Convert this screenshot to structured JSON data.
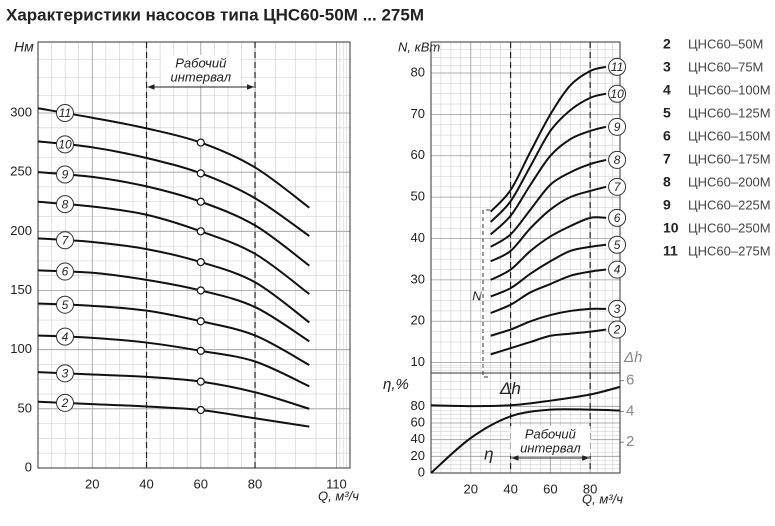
{
  "title": "Характеристики насосов типа ЦНС60-50М ... 275М",
  "legend": [
    {
      "number": "2",
      "name": "ЦНС60–50М"
    },
    {
      "number": "3",
      "name": "ЦНС60–75М"
    },
    {
      "number": "4",
      "name": "ЦНС60–100М"
    },
    {
      "number": "5",
      "name": "ЦНС60–125М"
    },
    {
      "number": "6",
      "name": "ЦНС60–150М"
    },
    {
      "number": "7",
      "name": "ЦНС60–175М"
    },
    {
      "number": "8",
      "name": "ЦНС60–200М"
    },
    {
      "number": "9",
      "name": "ЦНС60–225М"
    },
    {
      "number": "10",
      "name": "ЦНС60–250М"
    },
    {
      "number": "11",
      "name": "ЦНС60–275М"
    }
  ],
  "chart_data": [
    {
      "type": "line",
      "x_label": "Q, м³/ч",
      "y_label": "Hм",
      "annotation": [
        "Рабочий",
        "интервал"
      ],
      "work_interval": [
        40,
        80
      ],
      "marker_x": 60,
      "x": [
        0,
        20,
        40,
        60,
        80,
        100
      ],
      "xlim": [
        0,
        115
      ],
      "xticks": [
        20,
        40,
        60,
        80,
        110
      ],
      "ylim": [
        0,
        360
      ],
      "yticks": [
        0,
        50,
        100,
        150,
        200,
        250,
        300
      ],
      "grid": true,
      "series": [
        {
          "name": "2",
          "color": "#111111",
          "values": [
            56,
            54,
            52,
            49,
            42,
            35
          ]
        },
        {
          "name": "3",
          "color": "#111111",
          "values": [
            81,
            79,
            77,
            73,
            64,
            50
          ]
        },
        {
          "name": "4",
          "color": "#111111",
          "values": [
            112,
            110,
            106,
            99,
            90,
            69
          ]
        },
        {
          "name": "5",
          "color": "#111111",
          "values": [
            139,
            137,
            133,
            124,
            112,
            87
          ]
        },
        {
          "name": "6",
          "color": "#111111",
          "values": [
            167,
            165,
            159,
            150,
            136,
            107
          ]
        },
        {
          "name": "7",
          "color": "#111111",
          "values": [
            194,
            191,
            185,
            174,
            157,
            123
          ]
        },
        {
          "name": "8",
          "color": "#111111",
          "values": [
            225,
            221,
            214,
            200,
            181,
            147
          ]
        },
        {
          "name": "9",
          "color": "#111111",
          "values": [
            250,
            246,
            238,
            225,
            205,
            171
          ]
        },
        {
          "name": "10",
          "color": "#111111",
          "values": [
            276,
            271,
            262,
            249,
            228,
            196
          ]
        },
        {
          "name": "11",
          "color": "#111111",
          "values": [
            304,
            296,
            287,
            275,
            254,
            220
          ]
        }
      ]
    },
    {
      "type": "line",
      "y_label": "N, кВт",
      "bracket_label": "N",
      "work_interval": [
        40,
        80
      ],
      "x": [
        30,
        40,
        50,
        60,
        70,
        80,
        88
      ],
      "xlim": [
        0,
        95
      ],
      "ylim": [
        7.5,
        87.5
      ],
      "yticks": [
        10,
        20,
        30,
        40,
        50,
        60,
        70,
        80
      ],
      "grid": true,
      "series": [
        {
          "name": "2",
          "color": "#111111",
          "values": [
            12,
            13.5,
            15,
            16.5,
            17,
            17.5,
            18
          ]
        },
        {
          "name": "3",
          "color": "#111111",
          "values": [
            16.5,
            18,
            20,
            21.5,
            22.5,
            23,
            23
          ]
        },
        {
          "name": "4",
          "color": "#111111",
          "values": [
            22,
            24,
            27,
            29,
            31,
            32,
            32.5
          ]
        },
        {
          "name": "5",
          "color": "#111111",
          "values": [
            26,
            28,
            31.5,
            34.5,
            37,
            38,
            38.5
          ]
        },
        {
          "name": "6",
          "color": "#111111",
          "values": [
            30,
            32.5,
            37,
            40.5,
            43,
            45,
            45
          ]
        },
        {
          "name": "7",
          "color": "#111111",
          "values": [
            34.5,
            37,
            42.5,
            47,
            50,
            51.5,
            52.5
          ]
        },
        {
          "name": "8",
          "color": "#111111",
          "values": [
            38,
            41,
            47,
            53,
            56,
            58,
            59
          ]
        },
        {
          "name": "9",
          "color": "#111111",
          "values": [
            41,
            45.5,
            53,
            60,
            64,
            66,
            67
          ]
        },
        {
          "name": "10",
          "color": "#111111",
          "values": [
            44,
            49,
            57.5,
            66,
            71,
            74,
            75
          ]
        },
        {
          "name": "11",
          "color": "#111111",
          "values": [
            46.5,
            51.7,
            61,
            70,
            77,
            80.5,
            81.5
          ]
        }
      ]
    },
    {
      "type": "line",
      "x_label": "Q, м³/ч",
      "y_label": "η,%",
      "y2_label": "Δh",
      "annotation": [
        "Рабочий",
        "интервал"
      ],
      "work_interval": [
        40,
        80
      ],
      "x": [
        0,
        20,
        40,
        60,
        80,
        95
      ],
      "xlim": [
        0,
        95
      ],
      "xticks": [
        20,
        40,
        60,
        80
      ],
      "ylim": [
        0,
        120
      ],
      "yticks": [
        0,
        20,
        40,
        60,
        80
      ],
      "y2lim": [
        0,
        6.5
      ],
      "y2ticks": [
        2,
        4,
        6
      ],
      "grid": true,
      "series": [
        {
          "name": "η",
          "color": "#111111",
          "values": [
            0,
            42,
            68,
            76,
            76,
            75
          ]
        },
        {
          "name": "Δh",
          "color": "#111111",
          "axis": "y2",
          "values": [
            4.4,
            4.35,
            4.4,
            4.7,
            5.1,
            5.6
          ]
        }
      ]
    }
  ]
}
